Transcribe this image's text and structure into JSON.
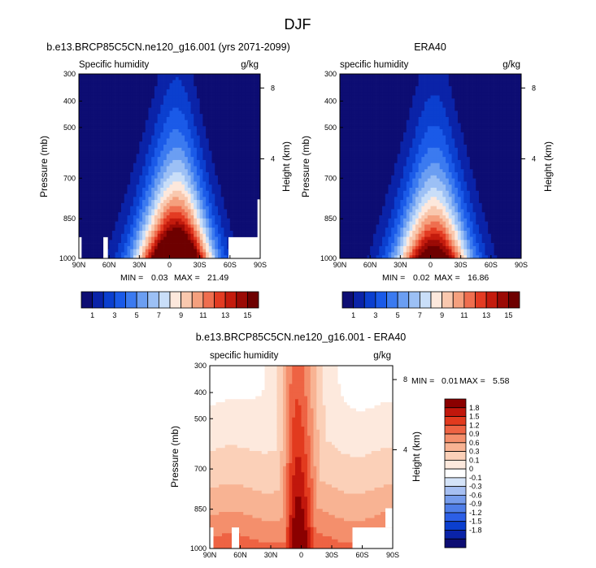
{
  "figure_title": "DJF",
  "colors": {
    "humidity_palette": [
      "#0d0d73",
      "#0a23a8",
      "#0b3fcf",
      "#1a5ae8",
      "#3b7af0",
      "#6b9ef2",
      "#9cc0f5",
      "#c9def8",
      "#fde8dc",
      "#f9c8ae",
      "#f5a07e",
      "#ef6e4f",
      "#e33b22",
      "#c41b0d",
      "#9b0a05",
      "#6e0000"
    ],
    "difference_palette": [
      "#0d0d73",
      "#0a23a8",
      "#0b3fcf",
      "#2c5fe6",
      "#4f7ee8",
      "#769cec",
      "#a6bff2",
      "#d4e3f8",
      "#ffffff",
      "#fde9dd",
      "#fbd0b8",
      "#f8b393",
      "#f48f6c",
      "#ee6343",
      "#e23a1e",
      "#c1170c",
      "#8b0000"
    ]
  },
  "chart_data": [
    {
      "type": "heatmap",
      "title": "b.e13.BRCP85C5CN.ne120_g16.001 (yrs 2071-2099)",
      "variable": "Specific humidity",
      "units": "g/kg",
      "ylabel": "Pressure (mb)",
      "y2label": "Height (km)",
      "xticks": [
        "90N",
        "60N",
        "30N",
        "0",
        "30S",
        "60S",
        "90S"
      ],
      "yticks": [
        "300",
        "400",
        "500",
        "700",
        "850",
        "1000"
      ],
      "y2ticks": [
        "8",
        "4"
      ],
      "ylim": [
        1000,
        300
      ],
      "stats": {
        "min_label": "MIN =",
        "min": "0.03",
        "max_label": "MAX =",
        "max": "21.49"
      },
      "colorbar": {
        "orientation": "horizontal",
        "labels": [
          "1",
          "3",
          "5",
          "7",
          "9",
          "11",
          "13",
          "15"
        ],
        "levels": [
          0,
          1,
          2,
          3,
          4,
          5,
          6,
          7,
          8,
          9,
          10,
          11,
          12,
          13,
          14,
          15
        ]
      },
      "peak_g_kg": 21.49
    },
    {
      "type": "heatmap",
      "title": "ERA40",
      "variable": "specific humidity",
      "units": "g/kg",
      "ylabel": "Pressure (mb)",
      "y2label": "Height (km)",
      "xticks": [
        "90N",
        "60N",
        "30N",
        "0",
        "30S",
        "60S",
        "90S"
      ],
      "yticks": [
        "300",
        "400",
        "500",
        "700",
        "850",
        "1000"
      ],
      "y2ticks": [
        "8",
        "4"
      ],
      "ylim": [
        1000,
        300
      ],
      "stats": {
        "min_label": "MIN =",
        "min": "0.02",
        "max_label": "MAX =",
        "max": "16.86"
      },
      "colorbar": {
        "orientation": "horizontal",
        "labels": [
          "1",
          "3",
          "5",
          "7",
          "9",
          "11",
          "13",
          "15"
        ],
        "levels": [
          0,
          1,
          2,
          3,
          4,
          5,
          6,
          7,
          8,
          9,
          10,
          11,
          12,
          13,
          14,
          15
        ]
      },
      "peak_g_kg": 16.86
    },
    {
      "type": "heatmap",
      "title": "b.e13.BRCP85C5CN.ne120_g16.001 - ERA40",
      "variable": "specific humidity",
      "units": "g/kg",
      "ylabel": "Pressure (mb)",
      "y2label": "Height (km)",
      "xticks": [
        "90N",
        "60N",
        "30N",
        "0",
        "30S",
        "60S",
        "90S"
      ],
      "yticks": [
        "300",
        "400",
        "500",
        "700",
        "850",
        "1000"
      ],
      "y2ticks": [
        "8",
        "4"
      ],
      "ylim": [
        1000,
        300
      ],
      "stats": {
        "min_label": "MIN =",
        "min": "0.01",
        "max_label": "MAX =",
        "max": "5.58"
      },
      "colorbar": {
        "orientation": "vertical",
        "labels": [
          "1.8",
          "1.5",
          "1.2",
          "0.9",
          "0.6",
          "0.3",
          "0.1",
          "0",
          "-0.1",
          "-0.3",
          "-0.6",
          "-0.9",
          "-1.2",
          "-1.5",
          "-1.8"
        ],
        "levels": [
          -2.1,
          -1.8,
          -1.5,
          -1.2,
          -0.9,
          -0.6,
          -0.3,
          -0.1,
          0,
          0.1,
          0.3,
          0.6,
          0.9,
          1.2,
          1.5,
          1.8,
          2.1
        ]
      }
    }
  ]
}
